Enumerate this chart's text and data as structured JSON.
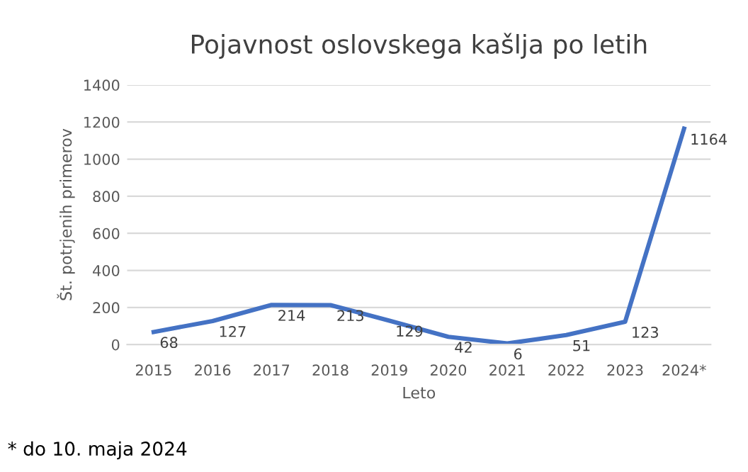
{
  "chart_data": {
    "type": "line",
    "title": "Pojavnost oslovskega kašlja po letih",
    "xlabel": "Leto",
    "ylabel": "Št. potrjenih primerov",
    "categories": [
      "2015",
      "2016",
      "2017",
      "2018",
      "2019",
      "2020",
      "2021",
      "2022",
      "2023",
      "2024*"
    ],
    "series": [
      {
        "color": "#4472c4",
        "values": [
          68,
          127,
          214,
          213,
          129,
          42,
          6,
          51,
          123,
          1164
        ]
      }
    ],
    "ylim": [
      0,
      1400
    ],
    "yticks": [
      0,
      200,
      400,
      600,
      800,
      1000,
      1200,
      1400
    ],
    "grid": "y",
    "data_labels": true,
    "marker": "none",
    "line_style": "solid",
    "annotations": [
      "* do 10. maja 2024"
    ]
  }
}
